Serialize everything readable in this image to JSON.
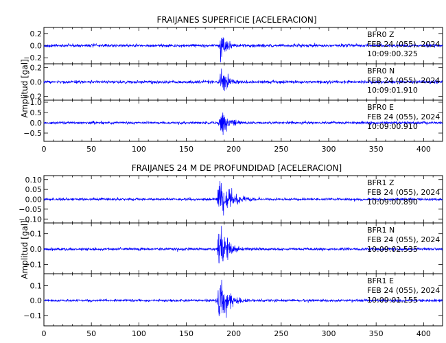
{
  "chart_data": [
    {
      "type": "line",
      "title": "FRAIJANES SUPERFICIE [ACELERACION]",
      "ylabel": "Amplitud [gal]",
      "xlim": [
        0,
        420
      ],
      "x_ticks": [
        "0",
        "50",
        "100",
        "150",
        "200",
        "250",
        "300",
        "350",
        "400"
      ],
      "line_color": "#0000ff",
      "panels": [
        {
          "station": "BFR0",
          "component": "Z",
          "date": "FEB 24 (055), 2024",
          "time": "10:09:00.325",
          "ylim": [
            -0.3,
            0.3
          ],
          "y_ticks": [
            {
              "v": 0.2,
              "t": "0.2"
            },
            {
              "v": 0.0,
              "t": "0.0"
            },
            {
              "v": -0.2,
              "t": "−0.2"
            }
          ],
          "noise": 0.012,
          "peak": 0.24,
          "event_time": 186,
          "decay": 7
        },
        {
          "station": "BFR0",
          "component": "N",
          "date": "FEB 24 (055), 2024",
          "time": "10:09:01.910",
          "ylim": [
            -0.25,
            0.25
          ],
          "y_ticks": [
            {
              "v": 0.2,
              "t": "0.2"
            },
            {
              "v": 0.0,
              "t": "0.0"
            },
            {
              "v": -0.2,
              "t": "−0.2"
            }
          ],
          "noise": 0.01,
          "peak": 0.17,
          "event_time": 186,
          "decay": 9
        },
        {
          "station": "BFR0",
          "component": "E",
          "date": "FEB 24 (055), 2024",
          "time": "10:09:00.910",
          "ylim": [
            -0.9,
            1.1
          ],
          "y_ticks": [
            {
              "v": 1.0,
              "t": "1.0"
            },
            {
              "v": 0.5,
              "t": "0.5"
            },
            {
              "v": 0.0,
              "t": "0.0"
            },
            {
              "v": -0.5,
              "t": "−0.5"
            }
          ],
          "noise": 0.03,
          "peak": 0.6,
          "event_time": 186,
          "decay": 9
        }
      ]
    },
    {
      "type": "line",
      "title": "FRAIJANES 24 M DE PROFUNDIDAD [ACELERACION]",
      "ylabel": "Amplitud [gal]",
      "xlim": [
        0,
        420
      ],
      "x_ticks": [
        "0",
        "50",
        "100",
        "150",
        "200",
        "250",
        "300",
        "350",
        "400"
      ],
      "line_color": "#0000ff",
      "panels": [
        {
          "station": "BFR1",
          "component": "Z",
          "date": "FEB 24 (055), 2024",
          "time": "10:09:00.890",
          "ylim": [
            -0.12,
            0.12
          ],
          "y_ticks": [
            {
              "v": 0.1,
              "t": "0.10"
            },
            {
              "v": 0.05,
              "t": "0.05"
            },
            {
              "v": 0.0,
              "t": "0.00"
            },
            {
              "v": -0.05,
              "t": "−0.05"
            },
            {
              "v": -0.1,
              "t": "−0.10"
            }
          ],
          "noise": 0.003,
          "peak": 0.11,
          "event_time": 184,
          "decay": 12
        },
        {
          "station": "BFR1",
          "component": "N",
          "date": "FEB 24 (055), 2024",
          "time": "10:09:02.535",
          "ylim": [
            -0.16,
            0.17
          ],
          "y_ticks": [
            {
              "v": 0.1,
              "t": "0.1"
            },
            {
              "v": 0.0,
              "t": "0.0"
            },
            {
              "v": -0.1,
              "t": "−0.1"
            }
          ],
          "noise": 0.004,
          "peak": 0.15,
          "event_time": 184,
          "decay": 9
        },
        {
          "station": "BFR1",
          "component": "E",
          "date": "FEB 24 (055), 2024",
          "time": "10:09:01.155",
          "ylim": [
            -0.17,
            0.18
          ],
          "y_ticks": [
            {
              "v": 0.1,
              "t": "0.1"
            },
            {
              "v": 0.0,
              "t": "0.0"
            },
            {
              "v": -0.1,
              "t": "−0.1"
            }
          ],
          "noise": 0.004,
          "peak": 0.16,
          "event_time": 184,
          "decay": 9
        }
      ]
    }
  ]
}
